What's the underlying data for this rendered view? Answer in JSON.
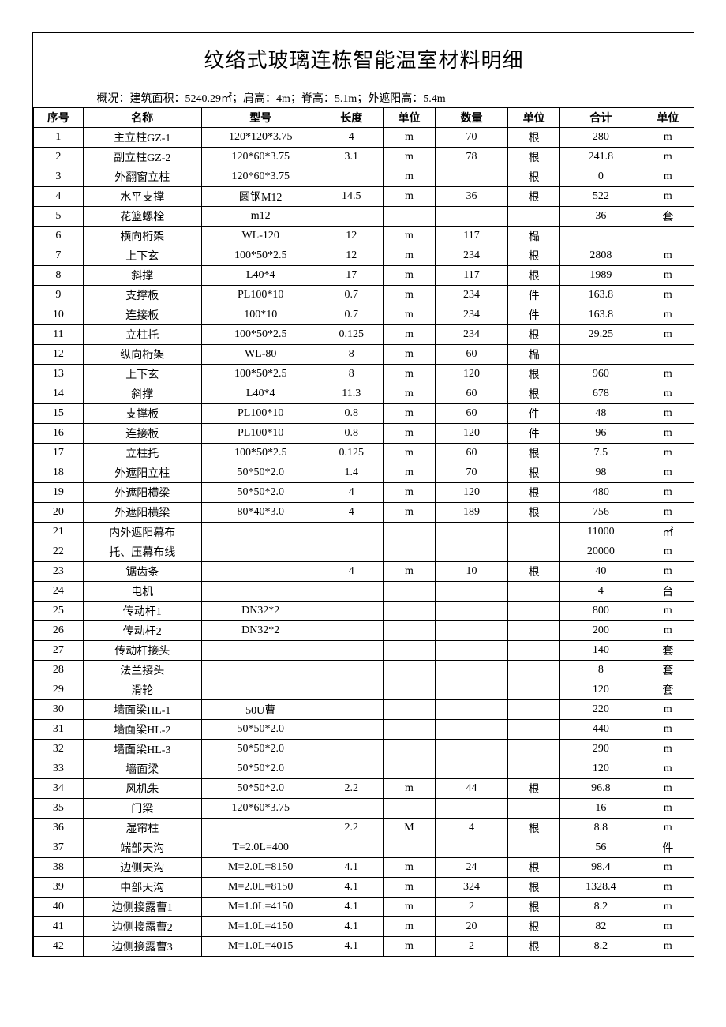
{
  "title": "纹络式玻璃连栋智能温室材料明细",
  "subtitle": "概况：建筑面积：5240.29㎡；肩高：4m；脊高：5.1m；外遮阳高：5.4m",
  "columns": [
    "序号",
    "名称",
    "型号",
    "长度",
    "单位",
    "数量",
    "单位",
    "合计",
    "单位"
  ],
  "rows": [
    [
      "1",
      "主立柱GZ-1",
      "120*120*3.75",
      "4",
      "m",
      "70",
      "根",
      "280",
      "m"
    ],
    [
      "2",
      "副立柱GZ-2",
      "120*60*3.75",
      "3.1",
      "m",
      "78",
      "根",
      "241.8",
      "m"
    ],
    [
      "3",
      "外翻窗立柱",
      "120*60*3.75",
      "",
      "m",
      "",
      "根",
      "0",
      "m"
    ],
    [
      "4",
      "水平支撑",
      "圆钢M12",
      "14.5",
      "m",
      "36",
      "根",
      "522",
      "m"
    ],
    [
      "5",
      "花篮螺栓",
      "m12",
      "",
      "",
      "",
      "",
      "36",
      "套"
    ],
    [
      "6",
      "横向桁架",
      "WL-120",
      "12",
      "m",
      "117",
      "榀",
      "",
      ""
    ],
    [
      "7",
      "上下玄",
      "100*50*2.5",
      "12",
      "m",
      "234",
      "根",
      "2808",
      "m"
    ],
    [
      "8",
      "斜撑",
      "L40*4",
      "17",
      "m",
      "117",
      "根",
      "1989",
      "m"
    ],
    [
      "9",
      "支撑板",
      "PL100*10",
      "0.7",
      "m",
      "234",
      "件",
      "163.8",
      "m"
    ],
    [
      "10",
      "连接板",
      "100*10",
      "0.7",
      "m",
      "234",
      "件",
      "163.8",
      "m"
    ],
    [
      "11",
      "立柱托",
      "100*50*2.5",
      "0.125",
      "m",
      "234",
      "根",
      "29.25",
      "m"
    ],
    [
      "12",
      "纵向桁架",
      "WL-80",
      "8",
      "m",
      "60",
      "榀",
      "",
      ""
    ],
    [
      "13",
      "上下玄",
      "100*50*2.5",
      "8",
      "m",
      "120",
      "根",
      "960",
      "m"
    ],
    [
      "14",
      "斜撑",
      "L40*4",
      "11.3",
      "m",
      "60",
      "根",
      "678",
      "m"
    ],
    [
      "15",
      "支撑板",
      "PL100*10",
      "0.8",
      "m",
      "60",
      "件",
      "48",
      "m"
    ],
    [
      "16",
      "连接板",
      "PL100*10",
      "0.8",
      "m",
      "120",
      "件",
      "96",
      "m"
    ],
    [
      "17",
      "立柱托",
      "100*50*2.5",
      "0.125",
      "m",
      "60",
      "根",
      "7.5",
      "m"
    ],
    [
      "18",
      "外遮阳立柱",
      "50*50*2.0",
      "1.4",
      "m",
      "70",
      "根",
      "98",
      "m"
    ],
    [
      "19",
      "外遮阳横梁",
      "50*50*2.0",
      "4",
      "m",
      "120",
      "根",
      "480",
      "m"
    ],
    [
      "20",
      "外遮阳横梁",
      "80*40*3.0",
      "4",
      "m",
      "189",
      "根",
      "756",
      "m"
    ],
    [
      "21",
      "内外遮阳幕布",
      "",
      "",
      "",
      "",
      "",
      "11000",
      "㎡"
    ],
    [
      "22",
      "托、压幕布线",
      "",
      "",
      "",
      "",
      "",
      "20000",
      "m"
    ],
    [
      "23",
      "锯齿条",
      "",
      "4",
      "m",
      "10",
      "根",
      "40",
      "m"
    ],
    [
      "24",
      "电机",
      "",
      "",
      "",
      "",
      "",
      "4",
      "台"
    ],
    [
      "25",
      "传动杆1",
      "DN32*2",
      "",
      "",
      "",
      "",
      "800",
      "m"
    ],
    [
      "26",
      "传动杆2",
      "DN32*2",
      "",
      "",
      "",
      "",
      "200",
      "m"
    ],
    [
      "27",
      "传动杆接头",
      "",
      "",
      "",
      "",
      "",
      "140",
      "套"
    ],
    [
      "28",
      "法兰接头",
      "",
      "",
      "",
      "",
      "",
      "8",
      "套"
    ],
    [
      "29",
      "滑轮",
      "",
      "",
      "",
      "",
      "",
      "120",
      "套"
    ],
    [
      "30",
      "墙面梁HL-1",
      "50U曹",
      "",
      "",
      "",
      "",
      "220",
      "m"
    ],
    [
      "31",
      "墙面梁HL-2",
      "50*50*2.0",
      "",
      "",
      "",
      "",
      "440",
      "m"
    ],
    [
      "32",
      "墙面梁HL-3",
      "50*50*2.0",
      "",
      "",
      "",
      "",
      "290",
      "m"
    ],
    [
      "33",
      "墙面梁",
      "50*50*2.0",
      "",
      "",
      "",
      "",
      "120",
      "m"
    ],
    [
      "34",
      "风机朱",
      "50*50*2.0",
      "2.2",
      "m",
      "44",
      "根",
      "96.8",
      "m"
    ],
    [
      "35",
      "门梁",
      "120*60*3.75",
      "",
      "",
      "",
      "",
      "16",
      "m"
    ],
    [
      "36",
      "湿帘柱",
      "",
      "2.2",
      "M",
      "4",
      "根",
      "8.8",
      "m"
    ],
    [
      "37",
      "端部天沟",
      "T=2.0L=400",
      "",
      "",
      "",
      "",
      "56",
      "件"
    ],
    [
      "38",
      "边侧天沟",
      "M=2.0L=8150",
      "4.1",
      "m",
      "24",
      "根",
      "98.4",
      "m"
    ],
    [
      "39",
      "中部天沟",
      "M=2.0L=8150",
      "4.1",
      "m",
      "324",
      "根",
      "1328.4",
      "m"
    ],
    [
      "40",
      "边侧接露曹1",
      "M=1.0L=4150",
      "4.1",
      "m",
      "2",
      "根",
      "8.2",
      "m"
    ],
    [
      "41",
      "边侧接露曹2",
      "M=1.0L=4150",
      "4.1",
      "m",
      "20",
      "根",
      "82",
      "m"
    ],
    [
      "42",
      "边侧接露曹3",
      "M=1.0L=4015",
      "4.1",
      "m",
      "2",
      "根",
      "8.2",
      "m"
    ]
  ]
}
